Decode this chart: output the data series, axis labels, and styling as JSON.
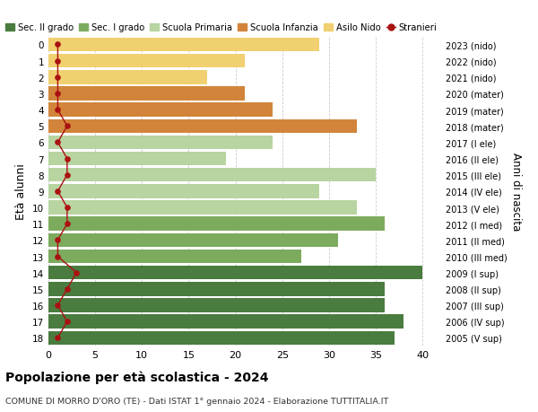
{
  "ages": [
    18,
    17,
    16,
    15,
    14,
    13,
    12,
    11,
    10,
    9,
    8,
    7,
    6,
    5,
    4,
    3,
    2,
    1,
    0
  ],
  "right_labels": [
    "2005 (V sup)",
    "2006 (IV sup)",
    "2007 (III sup)",
    "2008 (II sup)",
    "2009 (I sup)",
    "2010 (III med)",
    "2011 (II med)",
    "2012 (I med)",
    "2013 (V ele)",
    "2014 (IV ele)",
    "2015 (III ele)",
    "2016 (II ele)",
    "2017 (I ele)",
    "2018 (mater)",
    "2019 (mater)",
    "2020 (mater)",
    "2021 (nido)",
    "2022 (nido)",
    "2023 (nido)"
  ],
  "bar_values": [
    37,
    38,
    36,
    36,
    40,
    27,
    31,
    36,
    33,
    29,
    35,
    19,
    24,
    33,
    24,
    21,
    17,
    21,
    29
  ],
  "bar_colors": [
    "#4a7c3f",
    "#4a7c3f",
    "#4a7c3f",
    "#4a7c3f",
    "#4a7c3f",
    "#7dab5e",
    "#7dab5e",
    "#7dab5e",
    "#b8d4a0",
    "#b8d4a0",
    "#b8d4a0",
    "#b8d4a0",
    "#b8d4a0",
    "#d2853a",
    "#d2853a",
    "#d2853a",
    "#f0d070",
    "#f0d070",
    "#f0d070"
  ],
  "stranieri_values": [
    1,
    2,
    1,
    2,
    3,
    1,
    1,
    2,
    2,
    1,
    2,
    2,
    1,
    2,
    1,
    1,
    1,
    1,
    1
  ],
  "stranieri_color": "#aa1111",
  "legend_items": [
    {
      "label": "Sec. II grado",
      "color": "#4a7c3f"
    },
    {
      "label": "Sec. I grado",
      "color": "#7dab5e"
    },
    {
      "label": "Scuola Primaria",
      "color": "#b8d4a0"
    },
    {
      "label": "Scuola Infanzia",
      "color": "#d2853a"
    },
    {
      "label": "Asilo Nido",
      "color": "#f0d070"
    },
    {
      "label": "Stranieri",
      "color": "#aa1111"
    }
  ],
  "ylabel": "Età alunni",
  "right_ylabel": "Anni di nascita",
  "title": "Popolazione per età scolastica - 2024",
  "subtitle": "COMUNE DI MORRO D'ORO (TE) - Dati ISTAT 1° gennaio 2024 - Elaborazione TUTTITALIA.IT",
  "xlim": [
    0,
    42
  ],
  "xticks": [
    0,
    5,
    10,
    15,
    20,
    25,
    30,
    35,
    40
  ],
  "background_color": "#ffffff",
  "grid_color": "#cccccc"
}
